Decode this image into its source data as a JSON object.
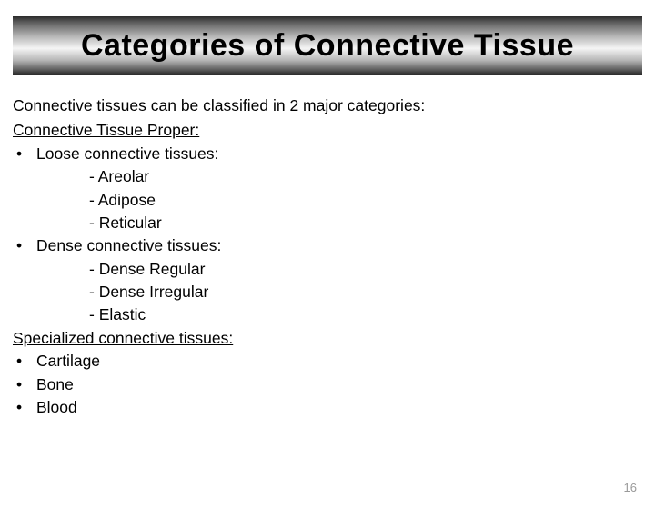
{
  "title": "Categories of Connective Tissue",
  "intro": "Connective tissues can be classified in 2 major categories:",
  "section1": {
    "heading": "Connective Tissue Proper:",
    "group1": {
      "label": "Loose connective tissues:",
      "items": [
        "- Areolar",
        "- Adipose",
        "- Reticular"
      ]
    },
    "group2": {
      "label": "Dense connective tissues:",
      "items": [
        "- Dense Regular",
        "- Dense Irregular",
        "- Elastic"
      ]
    }
  },
  "section2": {
    "heading": "Specialized connective tissues:",
    "items": [
      "Cartilage",
      "Bone",
      "Blood"
    ]
  },
  "pageNumber": "16",
  "colors": {
    "background": "#ffffff",
    "text": "#000000",
    "pageNum": "#9a9a9a"
  },
  "typography": {
    "title_fontsize": 34,
    "body_fontsize": 17.5,
    "page_fontsize": 13,
    "font_family": "Arial"
  }
}
